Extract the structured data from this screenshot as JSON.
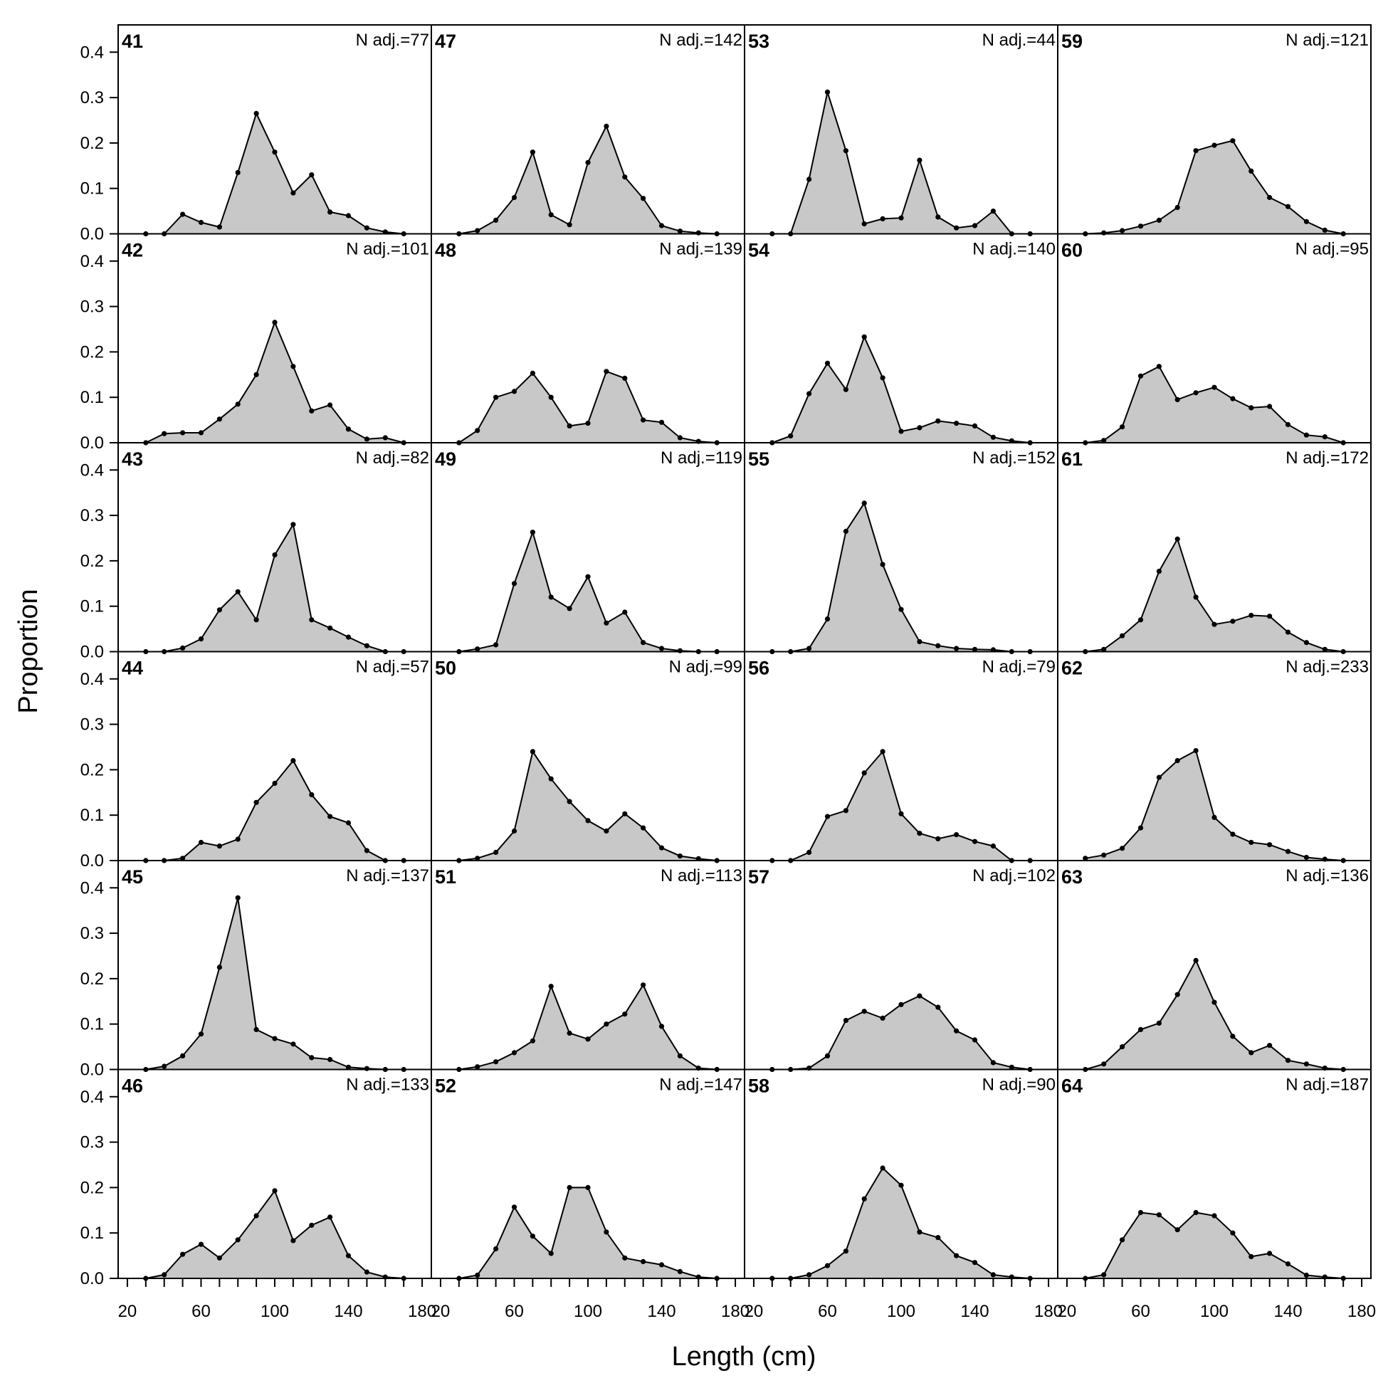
{
  "chart_data": {
    "type": "area",
    "xlabel": "Length (cm)",
    "ylabel": "Proportion",
    "xlim": [
      15,
      185
    ],
    "ylim": [
      0,
      0.46
    ],
    "x_ticks": [
      20,
      60,
      100,
      140,
      180
    ],
    "y_ticks": [
      0.0,
      0.1,
      0.2,
      0.3,
      0.4
    ],
    "y_tick_labels": [
      "0.0",
      "0.1",
      "0.2",
      "0.3",
      "0.4"
    ],
    "x": [
      30,
      40,
      50,
      60,
      70,
      80,
      90,
      100,
      110,
      120,
      130,
      140,
      150,
      160,
      170
    ],
    "fill_color": "#c8c8c8",
    "line_color": "#000000",
    "panels": [
      {
        "label": "41",
        "note": "N adj.=77",
        "values": [
          0,
          0,
          0.043,
          0.025,
          0.015,
          0.135,
          0.265,
          0.18,
          0.09,
          0.13,
          0.048,
          0.04,
          0.013,
          0.004,
          0
        ]
      },
      {
        "label": "42",
        "note": "N adj.=101",
        "values": [
          0,
          0.02,
          0.022,
          0.022,
          0.052,
          0.085,
          0.15,
          0.265,
          0.168,
          0.07,
          0.083,
          0.03,
          0.008,
          0.011,
          0
        ]
      },
      {
        "label": "43",
        "note": "N adj.=82",
        "values": [
          0,
          0,
          0.008,
          0.028,
          0.092,
          0.132,
          0.07,
          0.213,
          0.28,
          0.07,
          0.052,
          0.032,
          0.013,
          0,
          0
        ]
      },
      {
        "label": "44",
        "note": "N adj.=57",
        "values": [
          0,
          0,
          0.005,
          0.04,
          0.032,
          0.047,
          0.128,
          0.17,
          0.22,
          0.145,
          0.097,
          0.083,
          0.022,
          0,
          0
        ]
      },
      {
        "label": "45",
        "note": "N adj.=137",
        "values": [
          0,
          0.007,
          0.03,
          0.078,
          0.225,
          0.378,
          0.088,
          0.068,
          0.056,
          0.026,
          0.022,
          0.005,
          0.002,
          0,
          0
        ]
      },
      {
        "label": "46",
        "note": "N adj.=133",
        "values": [
          0,
          0.008,
          0.053,
          0.075,
          0.045,
          0.085,
          0.138,
          0.193,
          0.083,
          0.117,
          0.135,
          0.05,
          0.014,
          0.003,
          0
        ]
      },
      {
        "label": "47",
        "note": "N adj.=142",
        "values": [
          0,
          0.007,
          0.03,
          0.08,
          0.18,
          0.042,
          0.02,
          0.157,
          0.237,
          0.125,
          0.078,
          0.018,
          0.006,
          0.002,
          0
        ]
      },
      {
        "label": "48",
        "note": "N adj.=139",
        "values": [
          0,
          0.027,
          0.1,
          0.113,
          0.153,
          0.1,
          0.037,
          0.043,
          0.157,
          0.142,
          0.05,
          0.045,
          0.011,
          0.003,
          0
        ]
      },
      {
        "label": "49",
        "note": "N adj.=119",
        "values": [
          0,
          0.006,
          0.015,
          0.15,
          0.263,
          0.12,
          0.095,
          0.165,
          0.063,
          0.087,
          0.02,
          0.007,
          0.002,
          0,
          0
        ]
      },
      {
        "label": "50",
        "note": "N adj.=99",
        "values": [
          0,
          0.005,
          0.018,
          0.065,
          0.24,
          0.18,
          0.13,
          0.088,
          0.065,
          0.103,
          0.072,
          0.028,
          0.01,
          0.004,
          0
        ]
      },
      {
        "label": "51",
        "note": "N adj.=113",
        "values": [
          0,
          0.006,
          0.017,
          0.037,
          0.063,
          0.183,
          0.08,
          0.067,
          0.1,
          0.122,
          0.186,
          0.095,
          0.03,
          0.003,
          0
        ]
      },
      {
        "label": "52",
        "note": "N adj.=147",
        "values": [
          0,
          0.007,
          0.065,
          0.157,
          0.093,
          0.055,
          0.2,
          0.2,
          0.102,
          0.045,
          0.037,
          0.03,
          0.015,
          0.003,
          0
        ]
      },
      {
        "label": "53",
        "note": "N adj.=44",
        "values": [
          0,
          0,
          0.12,
          0.312,
          0.183,
          0.022,
          0.033,
          0.035,
          0.162,
          0.037,
          0.013,
          0.018,
          0.05,
          0,
          0
        ]
      },
      {
        "label": "54",
        "note": "N adj.=140",
        "values": [
          0,
          0.015,
          0.108,
          0.175,
          0.117,
          0.233,
          0.143,
          0.025,
          0.033,
          0.048,
          0.043,
          0.037,
          0.012,
          0.004,
          0
        ]
      },
      {
        "label": "55",
        "note": "N adj.=152",
        "values": [
          0,
          0,
          0.007,
          0.072,
          0.265,
          0.327,
          0.192,
          0.093,
          0.022,
          0.013,
          0.007,
          0.005,
          0.004,
          0,
          0
        ]
      },
      {
        "label": "56",
        "note": "N adj.=79",
        "values": [
          0,
          0,
          0.018,
          0.097,
          0.11,
          0.193,
          0.24,
          0.103,
          0.06,
          0.048,
          0.057,
          0.042,
          0.032,
          0,
          0
        ]
      },
      {
        "label": "57",
        "note": "N adj.=102",
        "values": [
          0,
          0,
          0.003,
          0.03,
          0.108,
          0.128,
          0.113,
          0.143,
          0.162,
          0.137,
          0.085,
          0.065,
          0.015,
          0.005,
          0
        ]
      },
      {
        "label": "58",
        "note": "N adj.=90",
        "values": [
          0,
          0,
          0.008,
          0.028,
          0.06,
          0.175,
          0.243,
          0.205,
          0.102,
          0.09,
          0.05,
          0.035,
          0.008,
          0.003,
          0
        ]
      },
      {
        "label": "59",
        "note": "N adj.=121",
        "values": [
          0,
          0.002,
          0.007,
          0.017,
          0.03,
          0.058,
          0.183,
          0.195,
          0.205,
          0.138,
          0.08,
          0.06,
          0.027,
          0.008,
          0
        ]
      },
      {
        "label": "60",
        "note": "N adj.=95",
        "values": [
          0,
          0.005,
          0.035,
          0.147,
          0.168,
          0.095,
          0.11,
          0.122,
          0.097,
          0.077,
          0.08,
          0.04,
          0.017,
          0.013,
          0
        ]
      },
      {
        "label": "61",
        "note": "N adj.=172",
        "values": [
          0,
          0.005,
          0.035,
          0.07,
          0.177,
          0.248,
          0.12,
          0.06,
          0.067,
          0.08,
          0.078,
          0.043,
          0.02,
          0.005,
          0
        ]
      },
      {
        "label": "62",
        "note": "N adj.=233",
        "values": [
          0.005,
          0.012,
          0.027,
          0.072,
          0.183,
          0.22,
          0.242,
          0.095,
          0.058,
          0.04,
          0.035,
          0.02,
          0.007,
          0.003,
          0
        ]
      },
      {
        "label": "63",
        "note": "N adj.=136",
        "values": [
          0,
          0.012,
          0.05,
          0.088,
          0.102,
          0.165,
          0.24,
          0.148,
          0.073,
          0.037,
          0.053,
          0.02,
          0.012,
          0.003,
          0
        ]
      },
      {
        "label": "64",
        "note": "N adj.=187",
        "values": [
          0,
          0.008,
          0.085,
          0.145,
          0.14,
          0.107,
          0.145,
          0.138,
          0.1,
          0.048,
          0.055,
          0.032,
          0.007,
          0.003,
          0
        ]
      }
    ]
  }
}
